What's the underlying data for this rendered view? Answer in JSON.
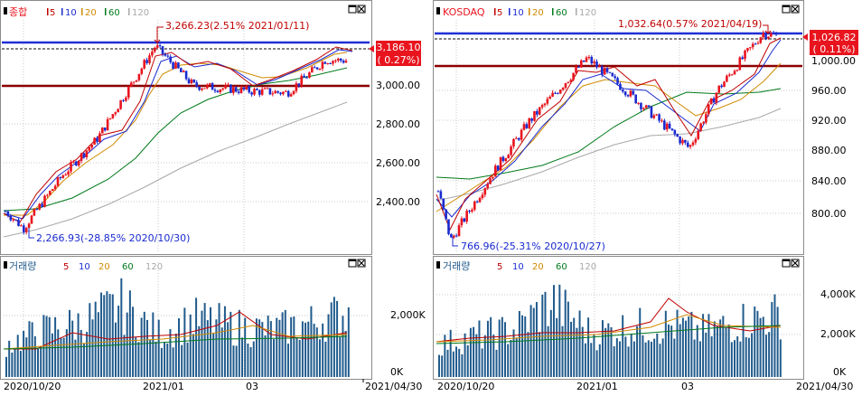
{
  "ma_colors": {
    "ma5": "#c00000",
    "ma10": "#1a2bd0",
    "ma20": "#d08a00",
    "ma60": "#007a1a",
    "ma120": "#a8a8a8"
  },
  "up_color": "#e8141e",
  "down_color": "#1a2bd0",
  "volume_color": "#1f5a8c",
  "x_labels": [
    "2020/10/20",
    "2021/01",
    "03",
    "2021/04/30"
  ],
  "panels": [
    {
      "index_name": "종합",
      "legend": [
        "5",
        "10",
        "20",
        "60",
        "120"
      ],
      "volume_title": "거래량",
      "volume_legend": [
        "5",
        "10",
        "20",
        "60",
        "120"
      ],
      "y_ticks": [
        "3,000.00",
        "2,800.00",
        "2,600.00",
        "2,400.00"
      ],
      "volume_ticks": [
        "2,000K",
        "0K"
      ],
      "current_price": "3,186.10",
      "current_change": "( 0.27%)",
      "high_annotation": "3,266.23(2.51% 2021/01/11)",
      "low_annotation": "2,266.93(-28.85% 2020/10/30)"
    },
    {
      "index_name": "KOSDAQ",
      "legend": [
        "5",
        "10",
        "20",
        "60",
        "120"
      ],
      "volume_title": "거래량",
      "volume_legend": [
        "5",
        "10",
        "20",
        "60",
        "120"
      ],
      "y_ticks": [
        "1,000.00",
        "960.00",
        "920.00",
        "880.00",
        "840.00",
        "800.00"
      ],
      "volume_ticks": [
        "4,000K",
        "2,000K",
        "0K"
      ],
      "current_price": "1,026.82",
      "current_change": "( 0.11%)",
      "high_annotation": "1,032.64(0.57% 2021/04/19)",
      "low_annotation": "766.96(-25.31% 2020/10/27)"
    }
  ],
  "chart_data": [
    {
      "type": "candlestick",
      "title": "종합",
      "x_range": [
        "2020/10/20",
        "2021/04/30"
      ],
      "ylim": [
        2180,
        3320
      ],
      "series": [
        {
          "name": "종합",
          "points": [
            {
              "x": "2020/10/20",
              "y": 2360
            },
            {
              "x": "2020/10/30",
              "y": 2267
            },
            {
              "x": "2020/11/20",
              "y": 2550
            },
            {
              "x": "2020/12/10",
              "y": 2760
            },
            {
              "x": "2021/01/11",
              "y": 3266
            },
            {
              "x": "2021/02/01",
              "y": 3050
            },
            {
              "x": "2021/03/04",
              "y": 3020
            },
            {
              "x": "2021/03/25",
              "y": 3010
            },
            {
              "x": "2021/04/15",
              "y": 3190
            },
            {
              "x": "2021/04/30",
              "y": 3186
            }
          ]
        }
      ],
      "high": {
        "value": 3266.23,
        "change": "2.51%",
        "date": "2021/01/11"
      },
      "low": {
        "value": 2266.93,
        "change": "-28.85%",
        "date": "2020/10/30"
      },
      "current": {
        "value": 3186.1,
        "change": "0.27%"
      }
    },
    {
      "type": "candlestick",
      "title": "KOSDAQ",
      "x_range": [
        "2020/10/20",
        "2021/04/30"
      ],
      "ylim": [
        760,
        1042
      ],
      "series": [
        {
          "name": "KOSDAQ",
          "points": [
            {
              "x": "2020/10/20",
              "y": 830
            },
            {
              "x": "2020/10/27",
              "y": 767
            },
            {
              "x": "2020/11/20",
              "y": 855
            },
            {
              "x": "2020/12/10",
              "y": 920
            },
            {
              "x": "2021/01/11",
              "y": 1000
            },
            {
              "x": "2021/02/01",
              "y": 960
            },
            {
              "x": "2021/03/09",
              "y": 885
            },
            {
              "x": "2021/03/25",
              "y": 960
            },
            {
              "x": "2021/04/19",
              "y": 1032
            },
            {
              "x": "2021/04/30",
              "y": 1027
            }
          ]
        }
      ],
      "high": {
        "value": 1032.64,
        "change": "0.57%",
        "date": "2021/04/19"
      },
      "low": {
        "value": 766.96,
        "change": "-25.31%",
        "date": "2020/10/27"
      },
      "current": {
        "value": 1026.82,
        "change": "0.11%"
      }
    },
    {
      "type": "bar",
      "title": "거래량",
      "ylim": [
        0,
        3000
      ],
      "unit": "K",
      "values_k": [
        900,
        1300,
        1500,
        2000,
        1200,
        1600,
        1400,
        1300,
        1500,
        1800
      ]
    },
    {
      "type": "bar",
      "title": "거래량",
      "ylim": [
        0,
        5000
      ],
      "unit": "K",
      "values_k": [
        1500,
        1900,
        2200,
        3500,
        2000,
        2300,
        2400,
        2100,
        2600,
        2900
      ]
    }
  ]
}
